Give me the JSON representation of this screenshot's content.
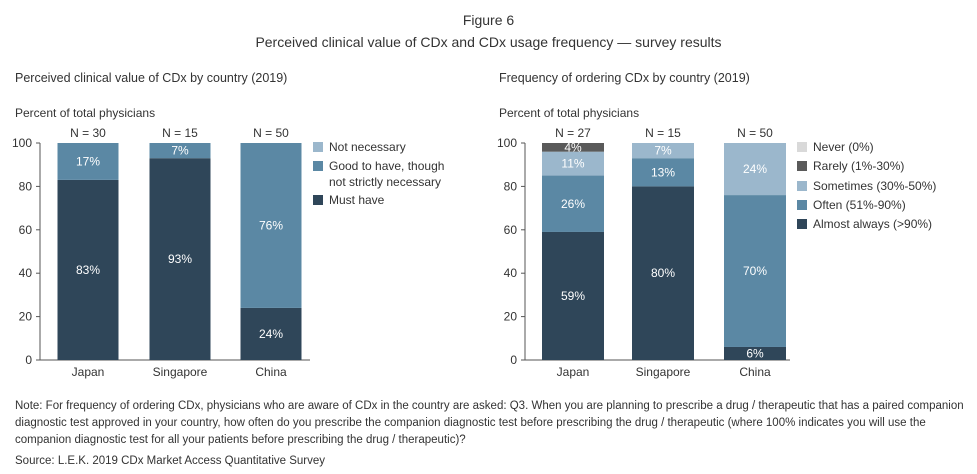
{
  "figure_label": "Figure 6",
  "figure_title": "Perceived clinical value of CDx and CDx usage frequency — survey results",
  "note": "Note: For frequency of ordering CDx, physicians who are aware of CDx in the country are asked: Q3. When you are planning to prescribe a drug / therapeutic that has a paired companion diagnostic test approved in your country, how often do you prescribe the companion diagnostic test before prescribing the drug / therapeutic (where 100% indicates you will use the companion diagnostic test for all your patients before prescribing the drug / therapeutic)?",
  "source": "Source: L.E.K. 2019 CDx Market Access Quantitative Survey",
  "chart_data": [
    {
      "type": "bar",
      "stacked": true,
      "title": "Perceived clinical value of CDx by country (2019)",
      "ylabel": "Percent of total physicians",
      "ylim": [
        0,
        100
      ],
      "yticks": [
        0,
        20,
        40,
        60,
        80,
        100
      ],
      "categories": [
        "Japan",
        "Singapore",
        "China"
      ],
      "sample_sizes": [
        "N = 30",
        "N = 15",
        "N = 50"
      ],
      "legend_position": "right",
      "series": [
        {
          "name": "Must have",
          "values": [
            83,
            93,
            24
          ],
          "labels": [
            "83%",
            "93%",
            "24%"
          ],
          "color": "#2f4659",
          "label_color": "#ffffff"
        },
        {
          "name": "Good to have, though not strictly necessary",
          "values": [
            17,
            7,
            76
          ],
          "labels": [
            "17%",
            "7%",
            "76%"
          ],
          "color": "#5b88a4",
          "label_color": "#ffffff"
        },
        {
          "name": "Not necessary",
          "values": [
            0,
            0,
            0
          ],
          "labels": [
            "",
            "",
            ""
          ],
          "color": "#9bb7cc",
          "label_color": "#333333"
        }
      ],
      "legend": [
        {
          "name": "Not necessary",
          "color": "#9bb7cc"
        },
        {
          "name": "Good to have, though not strictly necessary",
          "color": "#5b88a4"
        },
        {
          "name": "Must have",
          "color": "#2f4659"
        }
      ]
    },
    {
      "type": "bar",
      "stacked": true,
      "title": "Frequency of ordering CDx by country (2019)",
      "ylabel": "Percent of total physicians",
      "ylim": [
        0,
        100
      ],
      "yticks": [
        0,
        20,
        40,
        60,
        80,
        100
      ],
      "categories": [
        "Japan",
        "Singapore",
        "China"
      ],
      "sample_sizes": [
        "N = 27",
        "N = 15",
        "N = 50"
      ],
      "legend_position": "right",
      "series": [
        {
          "name": "Almost always (>90%)",
          "values": [
            59,
            80,
            6
          ],
          "labels": [
            "59%",
            "80%",
            "6%"
          ],
          "color": "#2f4659",
          "label_color": "#ffffff"
        },
        {
          "name": "Often (51%-90%)",
          "values": [
            26,
            13,
            70
          ],
          "labels": [
            "26%",
            "13%",
            "70%"
          ],
          "color": "#5b88a4",
          "label_color": "#ffffff"
        },
        {
          "name": "Sometimes (30%-50%)",
          "values": [
            11,
            7,
            24
          ],
          "labels": [
            "11%",
            "7%",
            "24%"
          ],
          "color": "#9bb7cc",
          "label_color": "#ffffff"
        },
        {
          "name": "Rarely (1%-30%)",
          "values": [
            4,
            0,
            0
          ],
          "labels": [
            "4%",
            "",
            ""
          ],
          "color": "#5a5a5a",
          "label_color": "#ffffff"
        },
        {
          "name": "Never (0%)",
          "values": [
            0,
            0,
            0
          ],
          "labels": [
            "",
            "",
            ""
          ],
          "color": "#d9d9d9",
          "label_color": "#333333"
        }
      ],
      "legend": [
        {
          "name": "Never (0%)",
          "color": "#d9d9d9"
        },
        {
          "name": "Rarely (1%-30%)",
          "color": "#5a5a5a"
        },
        {
          "name": "Sometimes (30%-50%)",
          "color": "#9bb7cc"
        },
        {
          "name": "Often (51%-90%)",
          "color": "#5b88a4"
        },
        {
          "name": "Almost always (>90%)",
          "color": "#2f4659"
        }
      ]
    }
  ]
}
